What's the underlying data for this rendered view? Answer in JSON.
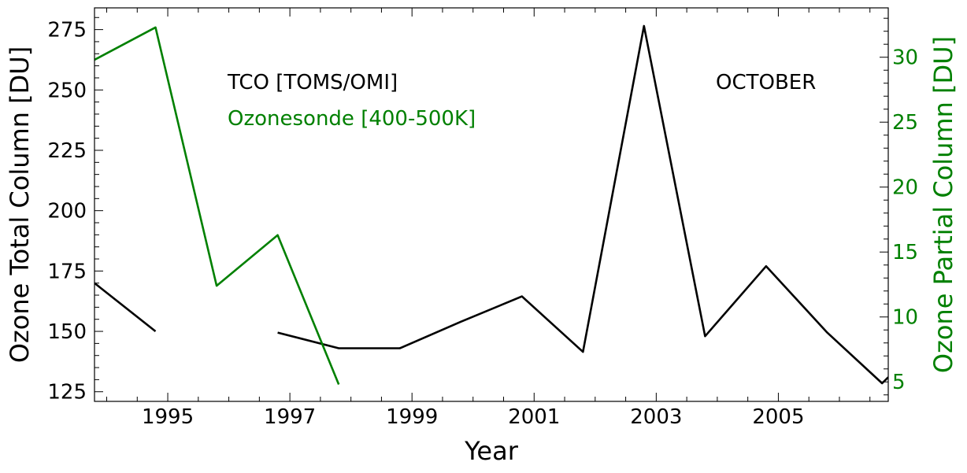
{
  "colors": {
    "tco": "#000000",
    "sonde": "#008000"
  },
  "chart_data": {
    "type": "line",
    "xlabel": "Year",
    "ylabel_left": "Ozone Total Column [DU]",
    "ylabel_right": "Ozone Partial Column [DU]",
    "xlim": [
      1993.8,
      2006.8
    ],
    "ylim_left": [
      121,
      284
    ],
    "ylim_right": [
      3.5,
      33.8
    ],
    "x_ticks": [
      1995,
      1997,
      1999,
      2001,
      2003,
      2005
    ],
    "y_left_ticks": [
      125,
      150,
      175,
      200,
      225,
      250,
      275
    ],
    "y_right_ticks": [
      5,
      10,
      15,
      20,
      25,
      30
    ],
    "annotations": {
      "tco": "TCO [TOMS/OMI]",
      "sonde": "Ozonesonde [400-500K]",
      "month": "OCTOBER"
    },
    "series": [
      {
        "name": "TCO [TOMS/OMI]",
        "axis": "left",
        "segments": [
          [
            [
              1993.8,
              170
            ],
            [
              1994.8,
              150
            ]
          ],
          [
            [
              1996.8,
              149.5
            ],
            [
              1997.8,
              143
            ],
            [
              1998.8,
              143
            ],
            [
              1999.8,
              154
            ],
            [
              2000.8,
              164.5
            ],
            [
              2001.8,
              141.5
            ],
            [
              2002.8,
              276.5
            ],
            [
              2003.8,
              148
            ],
            [
              2004.8,
              177
            ],
            [
              2005.8,
              149.5
            ],
            [
              2006.7,
              128.5
            ],
            [
              2006.8,
              131
            ]
          ]
        ]
      },
      {
        "name": "Ozonesonde [400-500K]",
        "axis": "right",
        "segments": [
          [
            [
              1993.8,
              29.8
            ],
            [
              1994.8,
              32.3
            ],
            [
              1995.8,
              12.4
            ],
            [
              1996.8,
              16.3
            ],
            [
              1997.8,
              4.8
            ]
          ]
        ]
      }
    ]
  }
}
